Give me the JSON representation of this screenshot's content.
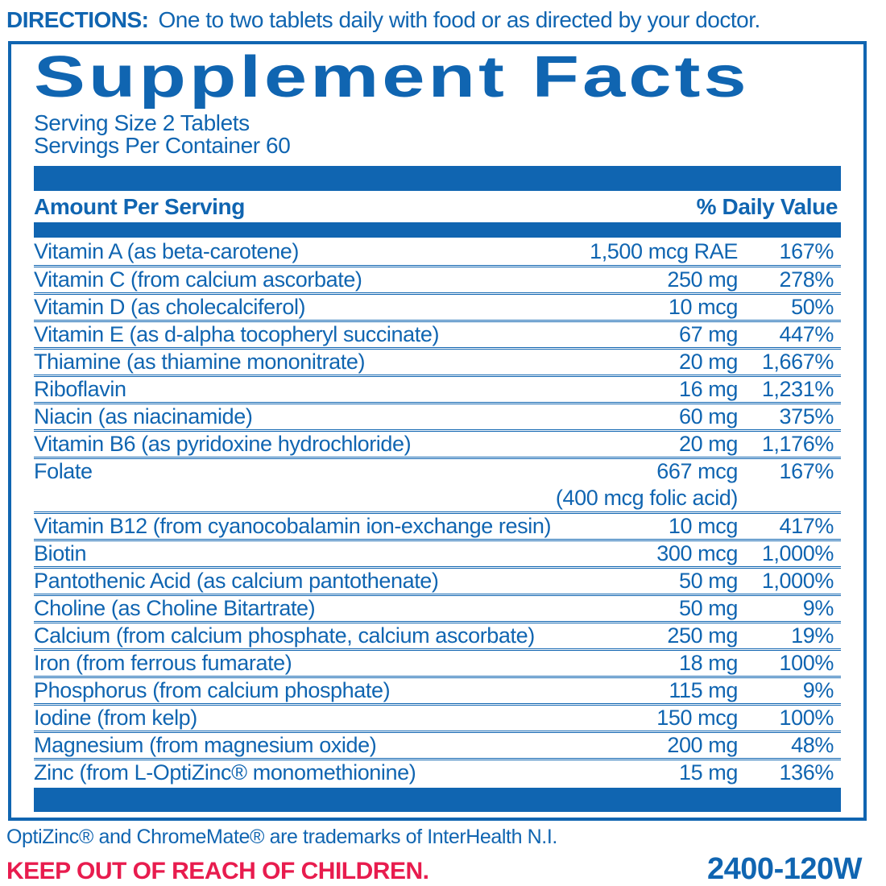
{
  "colors": {
    "blue": "#1065b1",
    "red": "#e81c4e"
  },
  "directions": {
    "label": "DIRECTIONS:",
    "text": "One to two tablets daily with food or as directed by your doctor."
  },
  "panel": {
    "title": "Supplement Facts",
    "serving_size": "Serving Size 2 Tablets",
    "servings_per_container": "Servings Per Container 60",
    "header": {
      "amount_label": "Amount Per Serving",
      "dv_label": "% Daily Value"
    },
    "rows": [
      {
        "name": "Vitamin A (as beta-carotene)",
        "amount": "1,500 mcg RAE",
        "dv": "167%"
      },
      {
        "name": "Vitamin C (from calcium ascorbate)",
        "amount": "250 mg",
        "dv": "278%"
      },
      {
        "name": "Vitamin D (as cholecalciferol)",
        "amount": "10 mcg",
        "dv": "50%"
      },
      {
        "name": "Vitamin E (as d-alpha tocopheryl succinate)",
        "amount": "67 mg",
        "dv": "447%"
      },
      {
        "name": "Thiamine (as thiamine mononitrate)",
        "amount": "20 mg",
        "dv": "1,667%"
      },
      {
        "name": "Riboflavin",
        "amount": "16 mg",
        "dv": "1,231%"
      },
      {
        "name": "Niacin (as niacinamide)",
        "amount": "60 mg",
        "dv": "375%"
      },
      {
        "name": "Vitamin B6 (as pyridoxine hydrochloride)",
        "amount": "20 mg",
        "dv": "1,176%"
      },
      {
        "name": "Folate",
        "amount": "667 mcg",
        "dv": "167%",
        "sub_amount": "(400 mcg folic acid)"
      },
      {
        "name": "Vitamin B12 (from cyanocobalamin ion-exchange resin)",
        "amount": "10 mcg",
        "dv": "417%"
      },
      {
        "name": "Biotin",
        "amount": "300 mcg",
        "dv": "1,000%"
      },
      {
        "name": "Pantothenic Acid (as calcium pantothenate)",
        "amount": "50 mg",
        "dv": "1,000%"
      },
      {
        "name": "Choline (as Choline Bitartrate)",
        "amount": "50 mg",
        "dv": "9%"
      },
      {
        "name": "Calcium (from calcium phosphate, calcium ascorbate)",
        "amount": "250 mg",
        "dv": "19%"
      },
      {
        "name": "Iron (from ferrous fumarate)",
        "amount": "18 mg",
        "dv": "100%"
      },
      {
        "name": "Phosphorus (from calcium phosphate)",
        "amount": "115 mg",
        "dv": "9%"
      },
      {
        "name": "Iodine (from kelp)",
        "amount": "150 mcg",
        "dv": "100%"
      },
      {
        "name": "Magnesium (from magnesium oxide)",
        "amount": "200 mg",
        "dv": "48%"
      },
      {
        "name": "Zinc (from L-OptiZinc® monomethionine)",
        "amount": "15 mg",
        "dv": "136%"
      }
    ]
  },
  "footer": {
    "trademark": "OptiZinc® and ChromeMate® are trademarks of InterHealth N.I.",
    "warning": "KEEP OUT OF REACH OF CHILDREN.",
    "code": "2400-120W"
  }
}
